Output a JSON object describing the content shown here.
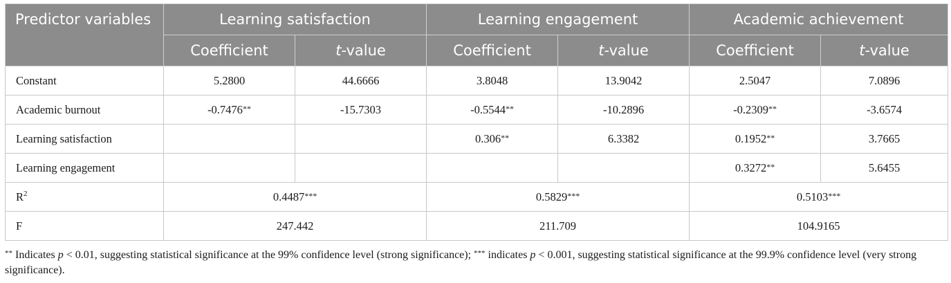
{
  "table": {
    "header": {
      "predictor": "Predictor variables",
      "groups": [
        "Learning satisfaction",
        "Learning engagement",
        "Academic achievement"
      ],
      "coef_label": "Coefficient",
      "t_italic": "t",
      "t_suffix": "-value"
    },
    "rows": [
      {
        "label": "Constant",
        "cells": [
          {
            "v": "5.2800",
            "s": ""
          },
          {
            "v": "44.6666",
            "s": ""
          },
          {
            "v": "3.8048",
            "s": ""
          },
          {
            "v": "13.9042",
            "s": ""
          },
          {
            "v": "2.5047",
            "s": ""
          },
          {
            "v": "7.0896",
            "s": ""
          }
        ]
      },
      {
        "label": "Academic burnout",
        "cells": [
          {
            "v": "-0.7476",
            "s": "**"
          },
          {
            "v": "-15.7303",
            "s": ""
          },
          {
            "v": "-0.5544",
            "s": "**"
          },
          {
            "v": "-10.2896",
            "s": ""
          },
          {
            "v": "-0.2309",
            "s": "**"
          },
          {
            "v": "-3.6574",
            "s": ""
          }
        ]
      },
      {
        "label": "Learning satisfaction",
        "cells": [
          {
            "v": "",
            "s": ""
          },
          {
            "v": "",
            "s": ""
          },
          {
            "v": "0.306",
            "s": "**"
          },
          {
            "v": "6.3382",
            "s": ""
          },
          {
            "v": "0.1952",
            "s": "**"
          },
          {
            "v": "3.7665",
            "s": ""
          }
        ]
      },
      {
        "label": "Learning engagement",
        "cells": [
          {
            "v": "",
            "s": ""
          },
          {
            "v": "",
            "s": ""
          },
          {
            "v": "",
            "s": ""
          },
          {
            "v": "",
            "s": ""
          },
          {
            "v": "0.3272",
            "s": "**"
          },
          {
            "v": "5.6455",
            "s": ""
          }
        ]
      }
    ],
    "r2": {
      "label_base": "R",
      "label_sup": "2",
      "values": [
        {
          "v": "0.4487",
          "s": "***"
        },
        {
          "v": "0.5829",
          "s": "***"
        },
        {
          "v": "0.5103",
          "s": "***"
        }
      ]
    },
    "f": {
      "label": "F",
      "values": [
        "247.442",
        "211.709",
        "104.9165"
      ]
    }
  },
  "note": {
    "stars1": "**",
    "part1": " Indicates ",
    "p1": "p",
    "part2": " < 0.01, suggesting statistical significance at the 99% confidence level (strong significance); ",
    "stars2": "***",
    "part3": " indicates ",
    "p2": "p",
    "part4": " < 0.001, suggesting statistical significance at the 99.9% confidence level (very strong significance)."
  }
}
